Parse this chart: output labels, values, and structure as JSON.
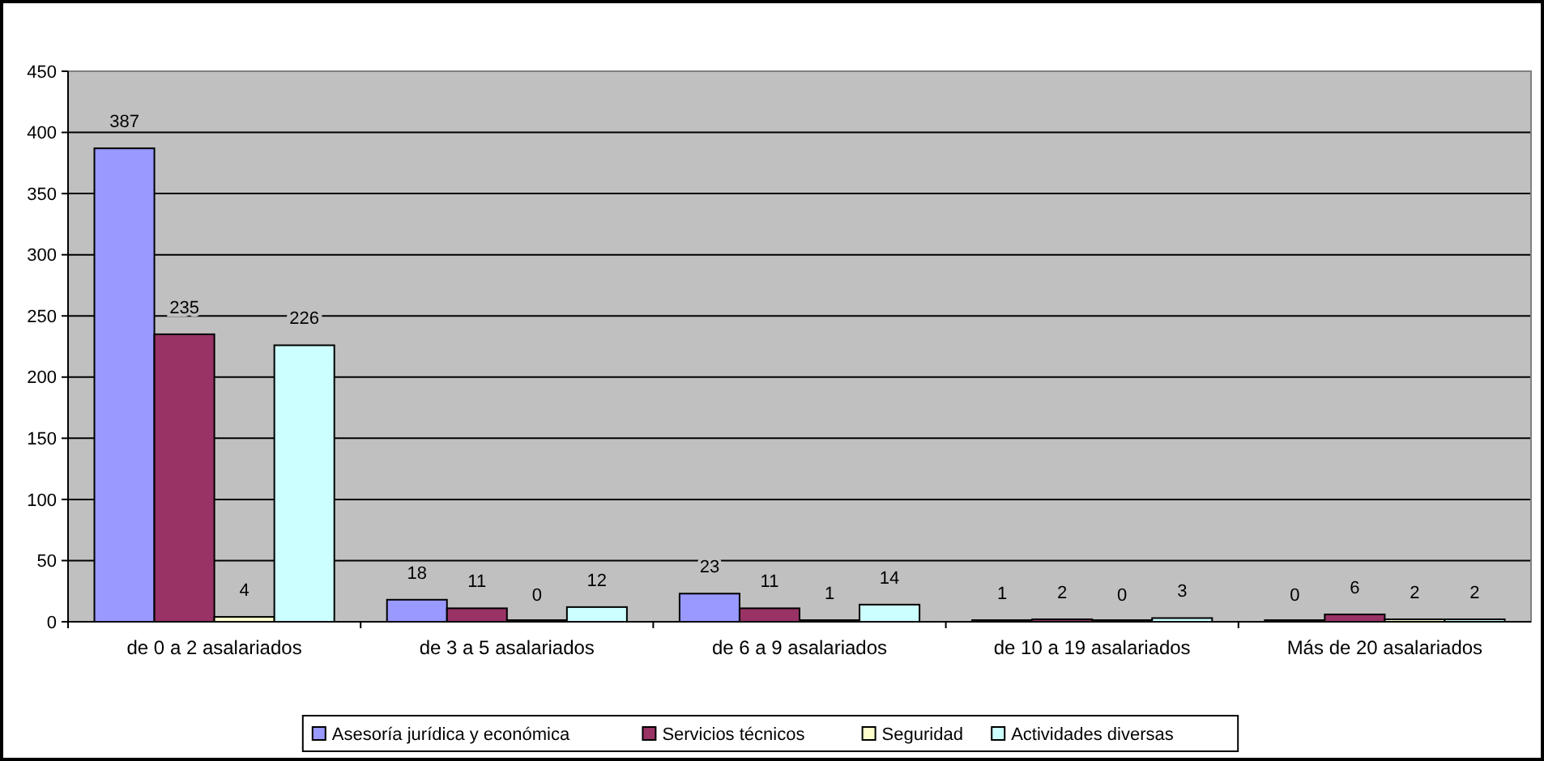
{
  "chart_data": {
    "type": "bar",
    "categories": [
      "de 0 a 2 asalariados",
      "de 3 a 5 asalariados",
      "de 6 a 9 asalariados",
      "de 10 a 19 asalariados",
      "Más de 20 asalariados"
    ],
    "series": [
      {
        "name": "Asesoría jurídica y económica",
        "color": "#9999ff",
        "values": [
          387,
          18,
          23,
          1,
          0
        ]
      },
      {
        "name": "Servicios técnicos",
        "color": "#993366",
        "values": [
          235,
          11,
          11,
          2,
          6
        ]
      },
      {
        "name": "Seguridad",
        "color": "#ffffcc",
        "values": [
          4,
          0,
          1,
          0,
          2
        ]
      },
      {
        "name": "Actividades diversas",
        "color": "#ccffff",
        "values": [
          226,
          12,
          14,
          3,
          2
        ]
      }
    ],
    "ylim": [
      0,
      450
    ],
    "yticks": [
      0,
      50,
      100,
      150,
      200,
      250,
      300,
      350,
      400,
      450
    ],
    "grid": "y",
    "legend": "bottom",
    "data_labels": true
  }
}
